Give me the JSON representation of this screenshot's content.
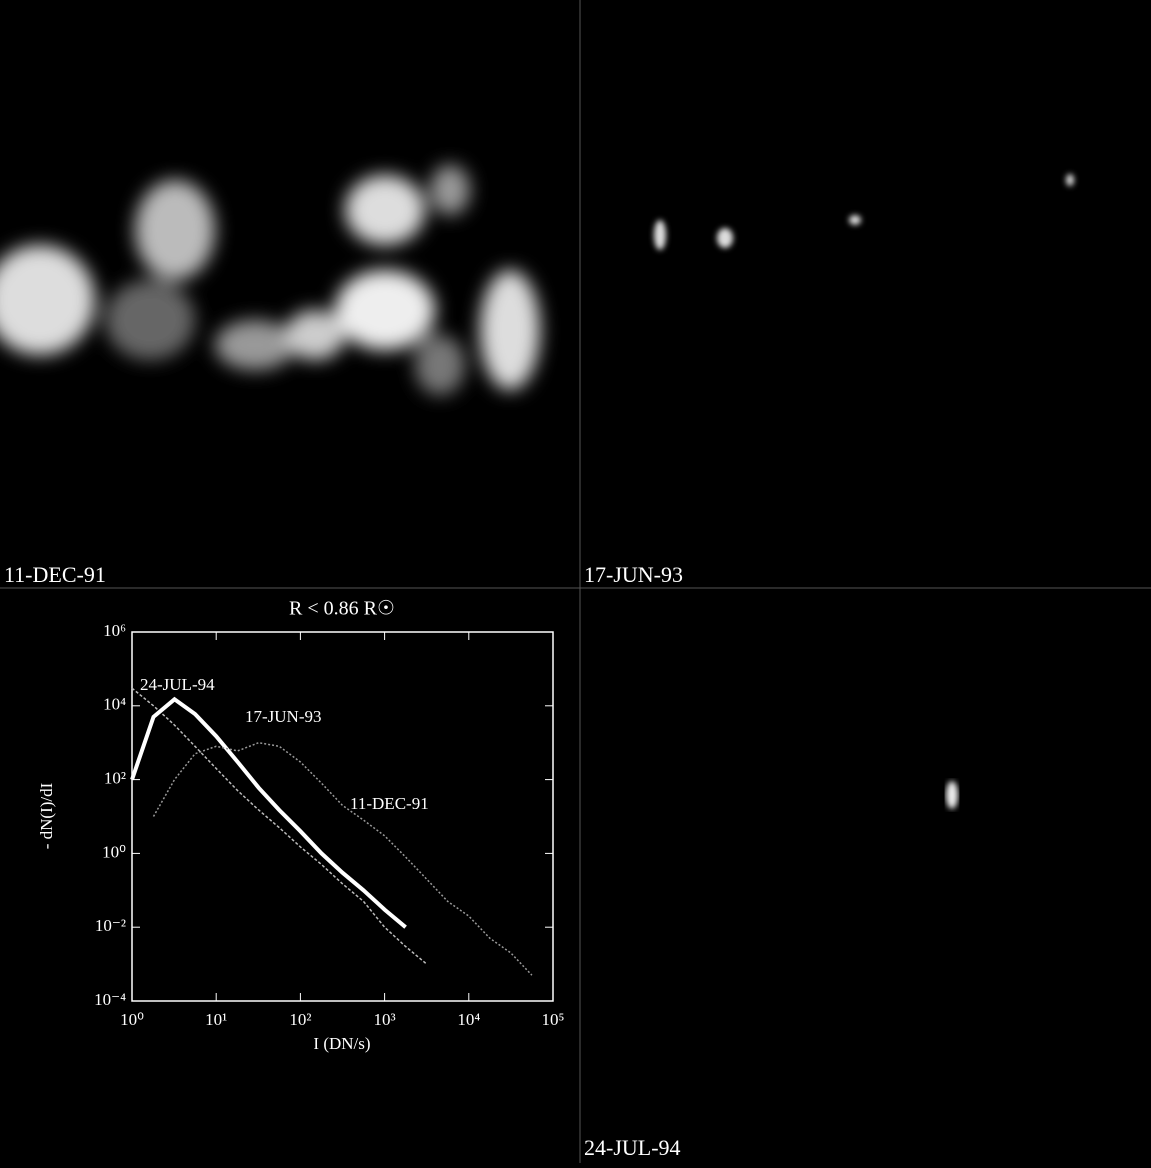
{
  "panels": [
    {
      "label": "11-DEC-91"
    },
    {
      "label": "17-JUN-93"
    },
    {
      "label": "24-JUL-94"
    }
  ],
  "chart_data": {
    "type": "line",
    "title": "R < 0.86 R☉",
    "x_label": "I (DN/s)",
    "y_label": "- dN(I)/dI",
    "xscale": "log",
    "yscale": "log",
    "x": [
      1,
      1.8,
      3.2,
      5.6,
      10,
      18,
      32,
      56,
      100,
      178,
      316,
      562,
      1000,
      1778,
      3162,
      5623,
      10000,
      17783,
      31623,
      56234
    ],
    "series": [
      {
        "name": "24-JUL-94",
        "color": "#bbbbbb",
        "values": [
          30000,
          10000,
          3000,
          800,
          200,
          50,
          15,
          5,
          1.5,
          0.5,
          0.15,
          0.05,
          0.01,
          0.003,
          0.001,
          null,
          null,
          null,
          null,
          null
        ]
      },
      {
        "name": "17-JUN-93",
        "color": "#ffffff",
        "values": [
          100,
          5000,
          15000,
          6000,
          1500,
          300,
          60,
          15,
          4,
          1,
          0.3,
          0.1,
          0.03,
          0.01,
          null,
          null,
          null,
          null,
          null,
          null
        ]
      },
      {
        "name": "11-DEC-91",
        "color": "#999999",
        "values": [
          null,
          10,
          100,
          500,
          800,
          600,
          1000,
          800,
          300,
          80,
          20,
          8,
          3,
          0.8,
          0.2,
          0.05,
          0.02,
          0.005,
          0.002,
          0.0005
        ]
      }
    ],
    "xlim": [
      1,
      100000
    ],
    "xticks": [
      {
        "value": 1,
        "label": "10⁰"
      },
      {
        "value": 10,
        "label": "10¹"
      },
      {
        "value": 100,
        "label": "10²"
      },
      {
        "value": 1000,
        "label": "10³"
      },
      {
        "value": 10000,
        "label": "10⁴"
      },
      {
        "value": 100000,
        "label": "10⁵"
      }
    ],
    "ylim": [
      0.0001,
      1000000
    ],
    "yticks": [
      {
        "value": 0.0001,
        "label": "10⁻⁴"
      },
      {
        "value": 0.01,
        "label": "10⁻²"
      },
      {
        "value": 1,
        "label": "10⁰"
      },
      {
        "value": 100,
        "label": "10²"
      },
      {
        "value": 10000,
        "label": "10⁴"
      },
      {
        "value": 1000000,
        "label": "10⁶"
      }
    ]
  }
}
